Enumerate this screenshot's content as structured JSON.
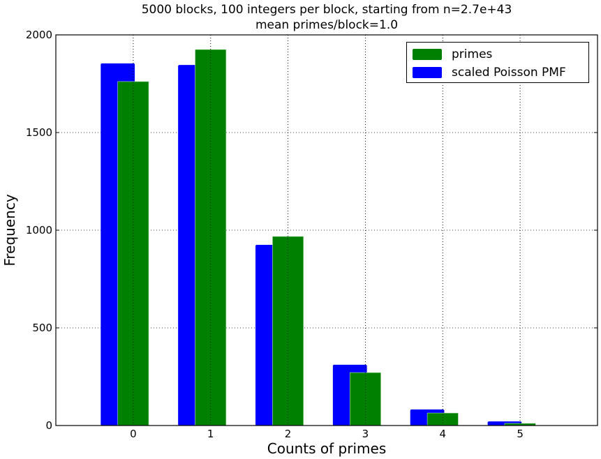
{
  "chart_data": {
    "type": "bar",
    "title": "5000 blocks, 100 integers per block, starting from n=2.7e+43",
    "subtitle": "mean primes/block=1.0",
    "xlabel": "Counts of primes",
    "ylabel": "Frequency",
    "categories": [
      "0",
      "1",
      "2",
      "3",
      "4",
      "5"
    ],
    "series": [
      {
        "name": "scaled Poisson PMF",
        "color": "#0000ff",
        "values": [
          1854,
          1846,
          925,
          311,
          82,
          21
        ]
      },
      {
        "name": "primes",
        "color": "#008000",
        "values": [
          1761,
          1925,
          968,
          271,
          64,
          11
        ]
      }
    ],
    "ylim": [
      0,
      2000
    ],
    "xlim": [
      -1,
      6
    ],
    "yticks": [
      "0",
      "500",
      "1000",
      "1500",
      "2000"
    ],
    "xticks": [
      "0",
      "1",
      "2",
      "3",
      "4",
      "5"
    ],
    "grid": true,
    "legend": {
      "position": "upper right",
      "entries": [
        "primes",
        "scaled Poisson PMF"
      ]
    }
  },
  "title_line1": "5000 blocks, 100 integers per block, starting from n=2.7e+43",
  "title_line2": "mean primes/block=1.0",
  "xlabel": "Counts of primes",
  "ylabel": "Frequency",
  "legend": {
    "items": [
      {
        "label": "primes",
        "color": "#008000"
      },
      {
        "label": "scaled Poisson PMF",
        "color": "#0000ff"
      }
    ]
  }
}
